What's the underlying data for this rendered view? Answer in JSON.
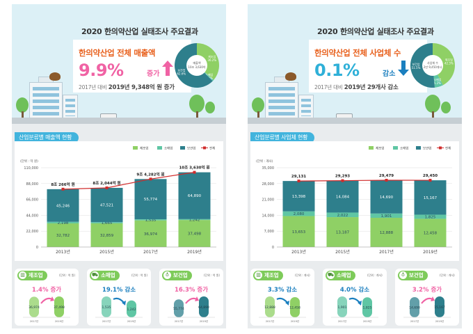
{
  "colors": {
    "manufacturing": "#8fd065",
    "retail": "#5fc6a4",
    "health": "#2e7f8c",
    "total_line": "#d02c2c",
    "increase": "#f062a4",
    "decrease": "#1b7fbf",
    "section_label": "#42b4dd"
  },
  "legend": [
    "제조업",
    "소매업",
    "보건업",
    "전체"
  ],
  "panels": [
    {
      "title": "2020 한의약산업 실태조사 주요결과",
      "headline": "한의약산업 전체 매출액",
      "big_value": "9.9%",
      "big_suffix": "증가",
      "direction": "up",
      "sub_prefix": "2017년 대비",
      "sub_value": "2019년 9,348억 원 증가",
      "donut": {
        "center_label": "매출액",
        "center_value": "10조 3,630억",
        "slices": [
          {
            "name": "제조업",
            "pct": 36.2
          },
          {
            "name": "소매업",
            "pct": 1.2
          },
          {
            "name": "보건업",
            "pct": 62.6
          }
        ]
      },
      "section_title": "산업분류별 매출액 현황",
      "chart_data": {
        "type": "bar",
        "stacked": true,
        "unit": "(단위 : 억 원)",
        "categories": [
          "2013년",
          "2015년",
          "2017년",
          "2019년"
        ],
        "series": [
          {
            "name": "제조업",
            "values": [
              32782,
              32859,
              36974,
              37498
            ]
          },
          {
            "name": "소매업",
            "values": [
              2198,
              1665,
              1535,
              1242
            ]
          },
          {
            "name": "보건업",
            "values": [
              45246,
              47521,
              55774,
              64890
            ]
          }
        ],
        "line": {
          "name": "전체",
          "labels": [
            "8조 266억 원",
            "8조 2,044억 원",
            "9조 4,282억 원",
            "10조 3,630억 원"
          ]
        },
        "yticks": [
          0,
          22000,
          44000,
          66000,
          88000,
          110000
        ],
        "ytick_labels": [
          "0",
          "22,000",
          "44,000",
          "66,000",
          "88,000",
          "110,000"
        ],
        "ylim": [
          0,
          110000
        ]
      },
      "mini_cards": [
        {
          "name": "제조업",
          "icon": "factory-icon",
          "unit": "(단위 : 억 원)",
          "change": "1.4% 증가",
          "direction": "up",
          "years": [
            "2017년",
            "2019년"
          ],
          "values": [
            36974,
            37498
          ],
          "labels": [
            "36,974",
            "37,498"
          ]
        },
        {
          "name": "소매업",
          "icon": "cart-icon",
          "unit": "(단위 : 억 원)",
          "change": "19.1% 감소",
          "direction": "down",
          "years": [
            "2017년",
            "2019년"
          ],
          "values": [
            1535,
            1242
          ],
          "labels": [
            "1,535",
            "1,242"
          ]
        },
        {
          "name": "보건업",
          "icon": "stethoscope-icon",
          "unit": "(단위 : 억 원)",
          "change": "16.3% 증가",
          "direction": "up",
          "years": [
            "2017년",
            "2019년"
          ],
          "values": [
            55774,
            64890
          ],
          "labels": [
            "55,774",
            "64,890"
          ]
        }
      ]
    },
    {
      "title": "2020 한의약산업 실태조사 주요결과",
      "headline": "한의약산업 전체 사업체 수",
      "big_value": "0.1%",
      "big_suffix": "감소",
      "direction": "down",
      "sub_prefix": "2017년 대비",
      "sub_value": "2019년 29개사 감소",
      "donut": {
        "center_label": "사업체 수",
        "center_value": "2만 9,450개사",
        "slices": [
          {
            "name": "제조업",
            "pct": 42.3
          },
          {
            "name": "소매업",
            "pct": 6.2
          },
          {
            "name": "보건업",
            "pct": 51.5
          }
        ]
      },
      "section_title": "산업분류별 사업체 현황",
      "chart_data": {
        "type": "bar",
        "stacked": true,
        "unit": "(단위 : 개사)",
        "categories": [
          "2013년",
          "2015년",
          "2017년",
          "2019년"
        ],
        "series": [
          {
            "name": "제조업",
            "values": [
              13653,
              13187,
              12888,
              12458
            ]
          },
          {
            "name": "소매업",
            "values": [
              2080,
              2022,
              1901,
              1825
            ]
          },
          {
            "name": "보건업",
            "values": [
              13398,
              14084,
              14690,
              15167
            ]
          }
        ],
        "line": {
          "name": "전체",
          "labels": [
            "29,131",
            "29,293",
            "29,479",
            "29,450"
          ]
        },
        "yticks": [
          0,
          7000,
          14000,
          21000,
          28000,
          35000
        ],
        "ytick_labels": [
          "0",
          "7,000",
          "14,000",
          "21,000",
          "28,000",
          "35,000"
        ],
        "ylim": [
          0,
          35000
        ]
      },
      "mini_cards": [
        {
          "name": "제조업",
          "icon": "factory-icon",
          "unit": "(단위 : 개사)",
          "change": "3.3% 감소",
          "direction": "down",
          "years": [
            "2017년",
            "2019년"
          ],
          "values": [
            12888,
            12458
          ],
          "labels": [
            "12,888",
            "12,458"
          ]
        },
        {
          "name": "소매업",
          "icon": "cart-icon",
          "unit": "(단위 : 개사)",
          "change": "4.0% 감소",
          "direction": "down",
          "years": [
            "2017년",
            "2019년"
          ],
          "values": [
            1901,
            1825
          ],
          "labels": [
            "1,901",
            "1,825"
          ]
        },
        {
          "name": "보건업",
          "icon": "stethoscope-icon",
          "unit": "(단위 : 개사)",
          "change": "3.2% 증가",
          "direction": "up",
          "years": [
            "2017년",
            "2019년"
          ],
          "values": [
            14690,
            15167
          ],
          "labels": [
            "14,690",
            "15,167"
          ]
        }
      ]
    }
  ]
}
